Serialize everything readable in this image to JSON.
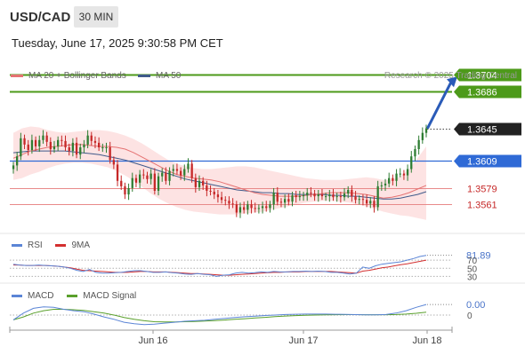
{
  "header": {
    "symbol": "USD/CAD",
    "timeframe": "30 MIN",
    "datetime": "Tuesday, June 17, 2025 9:30:58 PM CET"
  },
  "legend": {
    "ma20_label": "MA 20 + Bollinger Bands",
    "ma50_label": "MA 50",
    "credit": "Research © 2025 Trading Central"
  },
  "colors": {
    "bullish": "#2e7d32",
    "bearish": "#c62828",
    "ma20": "#e57373",
    "ma50": "#3f5a8a",
    "bands": "#fde3e3",
    "resistance": "#4d9a1a",
    "pivot": "#2f6ad6",
    "support": "#e88a8a",
    "arrow": "#2a5bb8",
    "rsi": "#5b85d6",
    "rsi_ma": "#d32f2f",
    "macd": "#5b85d6",
    "macd_signal": "#5aa02c"
  },
  "rsi_panel": {
    "rsi_label": "RSI",
    "ma_label": "9MA",
    "current_value": "81.89",
    "tick_labels": [
      "70",
      "50",
      "30"
    ]
  },
  "macd_panel": {
    "macd_label": "MACD",
    "signal_label": "MACD Signal",
    "current_value": "0.00",
    "zero_label": "0"
  },
  "chart_data": {
    "type": "candlestick",
    "x_tick_labels": [
      "Jun 16",
      "Jun 17",
      "Jun 18"
    ],
    "price_ylim": [
      1.353,
      1.3718
    ],
    "levels": [
      {
        "label": "1.3704",
        "value": 1.3704,
        "kind": "resistance"
      },
      {
        "label": "1.3686",
        "value": 1.3686,
        "kind": "resistance"
      },
      {
        "label": "1.3645",
        "value": 1.3645,
        "kind": "last"
      },
      {
        "label": "1.3609",
        "value": 1.3609,
        "kind": "pivot"
      },
      {
        "label": "1.3579",
        "value": 1.3579,
        "kind": "support"
      },
      {
        "label": "1.3561",
        "value": 1.3561,
        "kind": "support"
      }
    ],
    "forecast_target": 1.3704,
    "close": [
      1.3604,
      1.3614,
      1.3634,
      1.3627,
      1.3621,
      1.3632,
      1.3625,
      1.3632,
      1.3637,
      1.363,
      1.3622,
      1.3625,
      1.3632,
      1.3631,
      1.3624,
      1.362,
      1.3629,
      1.3616,
      1.3624,
      1.3627,
      1.3637,
      1.3631,
      1.3629,
      1.3624,
      1.3624,
      1.3624,
      1.361,
      1.3605,
      1.3587,
      1.3581,
      1.3572,
      1.3579,
      1.359,
      1.3585,
      1.3594,
      1.3593,
      1.3589,
      1.3595,
      1.3576,
      1.3592,
      1.3596,
      1.3587,
      1.3598,
      1.36,
      1.3598,
      1.3593,
      1.36,
      1.3606,
      1.359,
      1.358,
      1.3587,
      1.3582,
      1.3576,
      1.3575,
      1.3572,
      1.3569,
      1.3566,
      1.3565,
      1.3562,
      1.3561,
      1.3552,
      1.3558,
      1.3555,
      1.3561,
      1.3557,
      1.3556,
      1.3557,
      1.3559,
      1.3557,
      1.3561,
      1.3574,
      1.3564,
      1.3563,
      1.3567,
      1.3564,
      1.3571,
      1.3569,
      1.357,
      1.3571,
      1.3574,
      1.3573,
      1.357,
      1.3572,
      1.357,
      1.357,
      1.3572,
      1.3569,
      1.357,
      1.3569,
      1.3573,
      1.3577,
      1.357,
      1.3566,
      1.3567,
      1.3566,
      1.3562,
      1.3565,
      1.3558,
      1.3581,
      1.3582,
      1.3584,
      1.359,
      1.3587,
      1.3595,
      1.3595,
      1.3593,
      1.36,
      1.3614,
      1.3622,
      1.3632,
      1.364,
      1.3645
    ],
    "ma20": [
      1.3612,
      1.3616,
      1.362,
      1.3622,
      1.3624,
      1.3625,
      1.3626,
      1.3627,
      1.3627,
      1.3626,
      1.3625,
      1.3625,
      1.3624,
      1.3622,
      1.3618,
      1.3613,
      1.3608,
      1.3603,
      1.3598,
      1.3594,
      1.3592,
      1.359,
      1.3589,
      1.3588,
      1.3586,
      1.3583,
      1.358,
      1.3577,
      1.3574,
      1.3572,
      1.3571,
      1.357,
      1.357,
      1.357,
      1.3571,
      1.3572,
      1.3573,
      1.3574,
      1.3574,
      1.3574,
      1.3573,
      1.3572,
      1.357,
      1.3568,
      1.3569,
      1.3571,
      1.3574,
      1.3578,
      1.3582
    ],
    "ma50": [
      1.3618,
      1.3619,
      1.362,
      1.362,
      1.362,
      1.362,
      1.362,
      1.3619,
      1.3618,
      1.3617,
      1.3616,
      1.3614,
      1.3612,
      1.361,
      1.3607,
      1.3604,
      1.3601,
      1.3598,
      1.3595,
      1.3592,
      1.3589,
      1.3587,
      1.3585,
      1.3583,
      1.3581,
      1.3579,
      1.3577,
      1.3576,
      1.3575,
      1.3574,
      1.3574,
      1.3573,
      1.3573,
      1.3572,
      1.3572,
      1.3572,
      1.3572,
      1.3571,
      1.3571,
      1.357,
      1.357,
      1.3569,
      1.3568,
      1.3567,
      1.3567,
      1.3568,
      1.357,
      1.3572,
      1.3575
    ],
    "bb_upper": [
      1.364,
      1.3645,
      1.3647,
      1.3646,
      1.3643,
      1.3641,
      1.364,
      1.3641,
      1.3642,
      1.3643,
      1.3643,
      1.3642,
      1.364,
      1.3637,
      1.3633,
      1.3628,
      1.3622,
      1.3616,
      1.361,
      1.3606,
      1.3603,
      1.3601,
      1.36,
      1.36,
      1.3601,
      1.3602,
      1.3603,
      1.3603,
      1.3602,
      1.36,
      1.3598,
      1.3596,
      1.3594,
      1.3592,
      1.359,
      1.3589,
      1.3588,
      1.3588,
      1.3588,
      1.3589,
      1.359,
      1.3591,
      1.359,
      1.3588,
      1.3588,
      1.3592,
      1.36,
      1.3612,
      1.3625
    ],
    "bb_lower": [
      1.3588,
      1.359,
      1.3594,
      1.3597,
      1.3601,
      1.3604,
      1.3606,
      1.3607,
      1.3607,
      1.3606,
      1.3604,
      1.3602,
      1.3598,
      1.3593,
      1.3587,
      1.358,
      1.3573,
      1.3567,
      1.3562,
      1.3558,
      1.3555,
      1.3553,
      1.3552,
      1.3551,
      1.355,
      1.355,
      1.355,
      1.3551,
      1.3552,
      1.3553,
      1.3555,
      1.3557,
      1.3559,
      1.3561,
      1.3563,
      1.3564,
      1.3565,
      1.3565,
      1.3564,
      1.3563,
      1.3561,
      1.3559,
      1.3556,
      1.3553,
      1.3551,
      1.3549,
      1.3548,
      1.3546,
      1.3544
    ],
    "rsi": [
      60,
      58,
      57,
      57,
      58,
      57,
      56,
      55,
      53,
      50,
      45,
      42,
      47,
      40,
      38,
      38,
      39,
      40,
      42,
      44,
      44,
      42,
      40,
      40,
      41,
      39,
      38,
      36,
      35,
      37,
      35,
      34,
      30,
      33,
      34,
      38,
      40,
      38,
      39,
      41,
      40,
      42,
      41,
      41,
      42,
      42,
      43,
      42,
      43,
      42,
      40,
      40,
      38,
      36,
      38,
      53,
      50,
      56,
      60,
      62,
      64,
      66,
      70,
      74,
      79,
      82
    ],
    "rsi_ma": [
      58,
      58,
      57,
      57,
      57,
      57,
      56,
      55,
      53,
      51,
      48,
      45,
      44,
      43,
      42,
      41,
      40,
      40,
      40,
      41,
      42,
      42,
      41,
      41,
      41,
      40,
      39,
      38,
      37,
      37,
      36,
      35,
      34,
      33,
      33,
      34,
      35,
      36,
      37,
      38,
      39,
      40,
      40,
      41,
      41,
      41,
      42,
      42,
      42,
      42,
      42,
      41,
      40,
      39,
      38,
      43,
      45,
      48,
      51,
      53,
      56,
      59,
      61,
      64,
      67,
      70
    ],
    "macd": [
      -0.5,
      0.2,
      0.7,
      0.85,
      0.8,
      0.6,
      0.45,
      0.35,
      0.1,
      -0.2,
      -0.45,
      -0.75,
      -0.9,
      -1.0,
      -0.95,
      -0.85,
      -0.75,
      -0.65,
      -0.6,
      -0.55,
      -0.45,
      -0.35,
      -0.25,
      -0.18,
      -0.12,
      -0.05,
      0.0,
      0.05,
      0.08,
      0.1,
      0.1,
      0.1,
      0.08,
      0.06,
      0.04,
      0.02,
      0.02,
      0.05,
      0.2,
      0.45,
      0.8,
      1.1
    ],
    "macd_signal": [
      -0.5,
      -0.2,
      0.2,
      0.45,
      0.6,
      0.6,
      0.55,
      0.48,
      0.35,
      0.2,
      0.0,
      -0.25,
      -0.45,
      -0.6,
      -0.7,
      -0.72,
      -0.72,
      -0.7,
      -0.67,
      -0.63,
      -0.58,
      -0.52,
      -0.45,
      -0.38,
      -0.31,
      -0.24,
      -0.17,
      -0.11,
      -0.06,
      -0.02,
      0.0,
      0.02,
      0.03,
      0.04,
      0.04,
      0.03,
      0.03,
      0.03,
      0.05,
      0.1,
      0.18,
      0.3
    ]
  }
}
